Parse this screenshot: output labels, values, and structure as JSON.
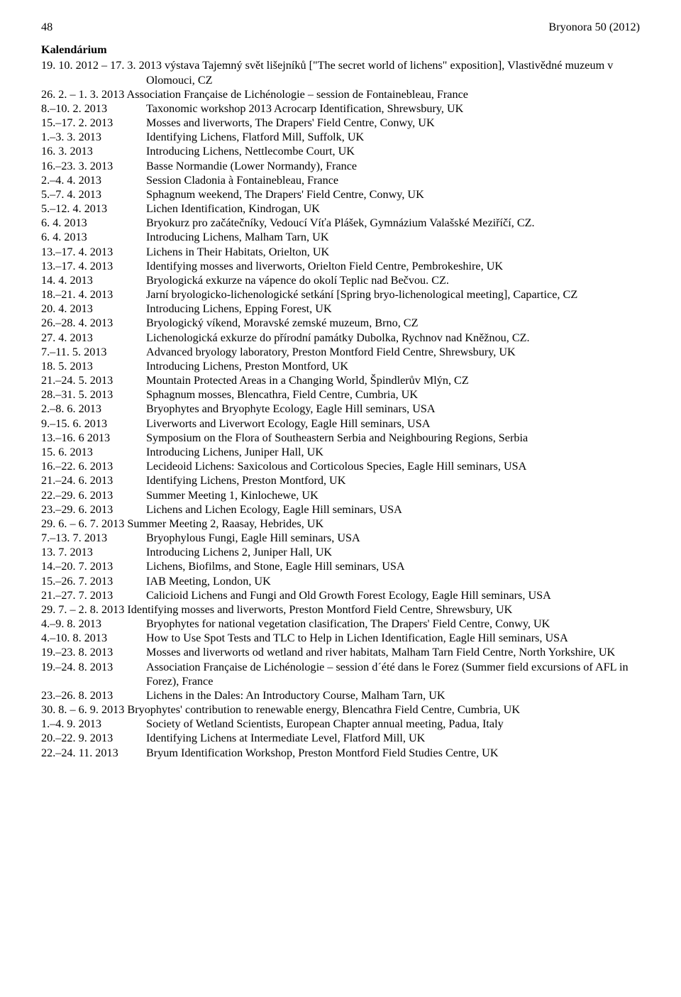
{
  "header": {
    "page_number": "48",
    "journal": "Bryonora 50 (2012)"
  },
  "title": "Kalendárium",
  "entries": [
    {
      "date": "19. 10. 2012 – 17. 3. 2013",
      "desc": "výstava Tajemný svět lišejníků [\"The secret world of lichens\" exposition], Vlastivědné muzeum v Olomouci, CZ",
      "inline": true
    },
    {
      "date": "26. 2. – 1. 3. 2013",
      "desc": "Association Française de Lichénologie – session de Fontainebleau, France",
      "inline": true
    },
    {
      "date": "8.–10. 2. 2013",
      "desc": "Taxonomic workshop 2013 Acrocarp Identification, Shrewsbury, UK"
    },
    {
      "date": "15.–17. 2. 2013",
      "desc": "Mosses and liverworts, The Drapers' Field Centre, Conwy, UK"
    },
    {
      "date": "1.–3. 3. 2013",
      "desc": "Identifying Lichens, Flatford Mill, Suffolk, UK"
    },
    {
      "date": "16. 3. 2013",
      "desc": "Introducing Lichens, Nettlecombe Court, UK"
    },
    {
      "date": "16.–23. 3. 2013",
      "desc": "Basse Normandie (Lower Normandy), France"
    },
    {
      "date": "2.–4. 4. 2013",
      "desc": "Session Cladonia à Fontainebleau, France"
    },
    {
      "date": "5.–7. 4. 2013",
      "desc": "Sphagnum weekend, The Drapers' Field Centre, Conwy, UK"
    },
    {
      "date": "5.–12. 4. 2013",
      "desc": "Lichen Identification, Kindrogan, UK"
    },
    {
      "date": "6. 4. 2013",
      "desc": "Bryokurz pro začátečníky, Vedoucí Víťa Plášek, Gymnázium Valašské Meziříčí, CZ."
    },
    {
      "date": "6. 4. 2013",
      "desc": "Introducing Lichens, Malham Tarn, UK"
    },
    {
      "date": "13.–17. 4. 2013",
      "desc": "Lichens in Their Habitats, Orielton, UK"
    },
    {
      "date": "13.–17. 4. 2013",
      "desc": "Identifying mosses and liverworts, Orielton Field Centre, Pembrokeshire, UK"
    },
    {
      "date": "14. 4. 2013",
      "desc": "Bryologická exkurze na vápence do okolí Teplic nad Bečvou. CZ."
    },
    {
      "date": "18.–21. 4. 2013",
      "desc": "Jarní bryologicko-lichenologické setkání [Spring bryo-lichenological meeting], Capartice, CZ"
    },
    {
      "date": "20. 4. 2013",
      "desc": "Introducing Lichens, Epping Forest, UK"
    },
    {
      "date": "26.–28. 4. 2013",
      "desc": "Bryologický víkend, Moravské zemské muzeum, Brno, CZ"
    },
    {
      "date": "27. 4. 2013",
      "desc": "Lichenologická exkurze do přírodní památky Dubolka, Rychnov nad Kněžnou, CZ."
    },
    {
      "date": "7.–11. 5. 2013",
      "desc": "Advanced bryology laboratory, Preston Montford Field Centre, Shrewsbury, UK"
    },
    {
      "date": "18. 5. 2013",
      "desc": "Introducing Lichens, Preston Montford, UK"
    },
    {
      "date": "21.–24. 5. 2013",
      "desc": "Mountain Protected Areas in a Changing World, Špindlerův Mlýn, CZ"
    },
    {
      "date": "28.–31. 5. 2013",
      "desc": "Sphagnum mosses, Blencathra, Field Centre, Cumbria, UK"
    },
    {
      "date": "2.–8. 6. 2013",
      "desc": "Bryophytes and Bryophyte Ecology, Eagle Hill seminars, USA"
    },
    {
      "date": "9.–15. 6. 2013",
      "desc": "Liverworts and Liverwort Ecology, Eagle Hill seminars, USA"
    },
    {
      "date": "13.–16. 6 2013",
      "desc": "Symposium on the Flora of Southeastern Serbia and Neighbouring Regions, Serbia"
    },
    {
      "date": "15. 6. 2013",
      "desc": "Introducing Lichens, Juniper Hall, UK"
    },
    {
      "date": "16.–22. 6. 2013",
      "desc": "Lecideoid Lichens: Saxicolous and Corticolous Species, Eagle Hill seminars, USA"
    },
    {
      "date": "21.–24. 6. 2013",
      "desc": "Identifying Lichens, Preston Montford, UK"
    },
    {
      "date": "22.–29. 6. 2013",
      "desc": "Summer Meeting 1, Kinlochewe, UK"
    },
    {
      "date": "23.–29. 6. 2013",
      "desc": "Lichens and Lichen Ecology, Eagle Hill seminars, USA"
    },
    {
      "date": "29. 6. – 6. 7. 2013",
      "desc": "Summer Meeting 2, Raasay, Hebrides, UK",
      "inline": true
    },
    {
      "date": "7.–13. 7. 2013",
      "desc": "Bryophylous Fungi, Eagle Hill seminars, USA"
    },
    {
      "date": "13. 7. 2013",
      "desc": "Introducing Lichens 2, Juniper Hall, UK"
    },
    {
      "date": "14.–20. 7. 2013",
      "desc": "Lichens, Biofilms, and Stone, Eagle Hill seminars, USA"
    },
    {
      "date": "15.–26. 7. 2013",
      "desc": "IAB Meeting, London, UK"
    },
    {
      "date": "21.–27. 7. 2013",
      "desc": "Calicioid Lichens and Fungi and Old Growth Forest Ecology, Eagle Hill seminars, USA"
    },
    {
      "date": "29. 7. – 2. 8. 2013",
      "desc": "Identifying mosses and liverworts, Preston Montford Field Centre, Shrewsbury, UK",
      "inline": true
    },
    {
      "date": "4.–9. 8. 2013",
      "desc": "Bryophytes for national vegetation clasification, The Drapers' Field Centre, Conwy, UK"
    },
    {
      "date": "4.–10. 8. 2013",
      "desc": "How to Use Spot Tests and TLC to Help in Lichen Identification, Eagle Hill  seminars, USA"
    },
    {
      "date": "19.–23. 8. 2013",
      "desc": "Mosses and liverworts od wetland and river habitats, Malham Tarn Field Centre, North Yorkshire, UK"
    },
    {
      "date": "19.–24. 8. 2013",
      "desc": "Association Française de Lichénologie – session d´été dans le Forez (Summer field excursions of AFL in Forez), France"
    },
    {
      "date": "23.–26. 8. 2013",
      "desc": "Lichens in the Dales: An Introductory Course, Malham Tarn, UK"
    },
    {
      "date": "30. 8. – 6. 9. 2013",
      "desc": "Bryophytes' contribution to renewable energy, Blencathra Field Centre, Cumbria, UK",
      "inline": true
    },
    {
      "date": "1.–4. 9. 2013",
      "desc": "Society of Wetland Scientists, European Chapter annual meeting, Padua, Italy"
    },
    {
      "date": "20.–22. 9. 2013",
      "desc": "Identifying Lichens at Intermediate Level, Flatford Mill, UK"
    },
    {
      "date": "22.–24. 11. 2013",
      "desc": "Bryum Identification Workshop, Preston Montford Field Studies Centre, UK"
    }
  ]
}
